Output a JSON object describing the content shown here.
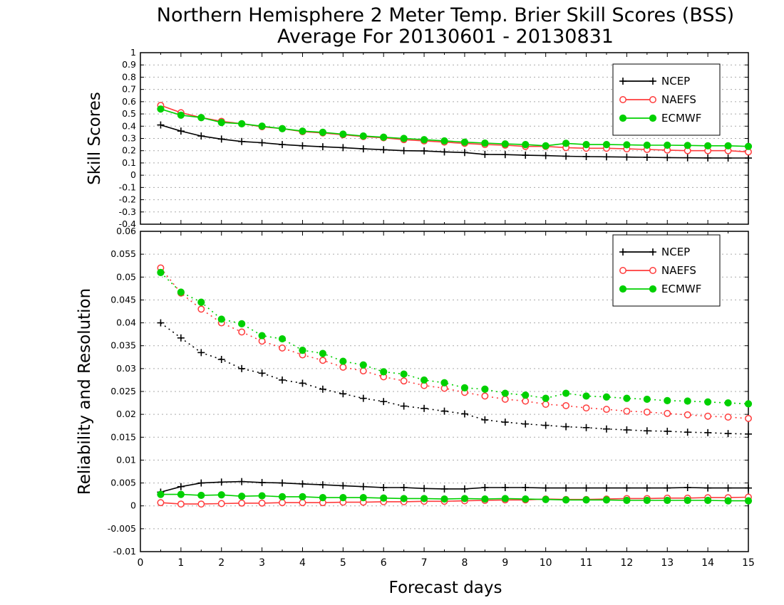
{
  "title_line1": "Northern Hemisphere 2 Meter Temp. Brier Skill Scores (BSS)",
  "title_line2": "Average For 20130601 - 20130831",
  "xlabel": "Forecast days",
  "chart_data": [
    {
      "type": "line",
      "ylabel": "Skill Scores",
      "xlim": [
        0,
        15
      ],
      "ylim": [
        -0.4,
        1
      ],
      "yticks": [
        "-0.4",
        "-0.3",
        "-0.2",
        "-0.1",
        "0",
        "0.1",
        "0.2",
        "0.3",
        "0.4",
        "0.5",
        "0.6",
        "0.7",
        "0.8",
        "0.9",
        "1"
      ],
      "xticks": [
        "0",
        "1",
        "2",
        "3",
        "4",
        "5",
        "6",
        "7",
        "8",
        "9",
        "10",
        "11",
        "12",
        "13",
        "14",
        "15"
      ],
      "grid": true,
      "legend": "top-right",
      "x": [
        0.5,
        1,
        1.5,
        2,
        2.5,
        3,
        3.5,
        4,
        4.5,
        5,
        5.5,
        6,
        6.5,
        7,
        7.5,
        8,
        8.5,
        9,
        9.5,
        10,
        10.5,
        11,
        11.5,
        12,
        12.5,
        13,
        13.5,
        14,
        14.5,
        15
      ],
      "series": [
        {
          "name": "NCEP",
          "color": "#000000",
          "marker": "plus",
          "line": "solid",
          "values": [
            0.41,
            0.36,
            0.32,
            0.295,
            0.275,
            0.265,
            0.25,
            0.24,
            0.232,
            0.225,
            0.215,
            0.208,
            0.2,
            0.198,
            0.19,
            0.185,
            0.17,
            0.168,
            0.163,
            0.16,
            0.155,
            0.152,
            0.15,
            0.148,
            0.146,
            0.144,
            0.142,
            0.141,
            0.14,
            0.14
          ]
        },
        {
          "name": "NAEFS",
          "color": "#ff3c3c",
          "marker": "open-circle",
          "line": "solid",
          "values": [
            0.57,
            0.51,
            0.47,
            0.44,
            0.42,
            0.395,
            0.38,
            0.355,
            0.345,
            0.33,
            0.315,
            0.305,
            0.29,
            0.28,
            0.27,
            0.26,
            0.25,
            0.245,
            0.235,
            0.235,
            0.225,
            0.22,
            0.22,
            0.215,
            0.21,
            0.205,
            0.2,
            0.2,
            0.2,
            0.19
          ]
        },
        {
          "name": "ECMWF",
          "color": "#00d000",
          "marker": "filled-circle",
          "line": "solid",
          "values": [
            0.54,
            0.49,
            0.47,
            0.43,
            0.42,
            0.4,
            0.38,
            0.36,
            0.35,
            0.335,
            0.32,
            0.31,
            0.3,
            0.29,
            0.28,
            0.27,
            0.262,
            0.255,
            0.25,
            0.24,
            0.26,
            0.25,
            0.25,
            0.248,
            0.245,
            0.245,
            0.243,
            0.24,
            0.24,
            0.235
          ]
        }
      ]
    },
    {
      "type": "line",
      "ylabel": "Reliability and Resolution",
      "xlim": [
        0,
        15
      ],
      "ylim": [
        -0.01,
        0.06
      ],
      "yticks": [
        "-0.01",
        "-0.005",
        "0",
        "0.005",
        "0.01",
        "0.015",
        "0.02",
        "0.025",
        "0.03",
        "0.035",
        "0.04",
        "0.045",
        "0.05",
        "0.055",
        "0.06"
      ],
      "xticks": [
        "0",
        "1",
        "2",
        "3",
        "4",
        "5",
        "6",
        "7",
        "8",
        "9",
        "10",
        "11",
        "12",
        "13",
        "14",
        "15"
      ],
      "grid": true,
      "legend": "top-right",
      "x": [
        0.5,
        1,
        1.5,
        2,
        2.5,
        3,
        3.5,
        4,
        4.5,
        5,
        5.5,
        6,
        6.5,
        7,
        7.5,
        8,
        8.5,
        9,
        9.5,
        10,
        10.5,
        11,
        11.5,
        12,
        12.5,
        13,
        13.5,
        14,
        14.5,
        15
      ],
      "legend_entries": [
        {
          "name": "NCEP",
          "color": "#000000",
          "marker": "plus"
        },
        {
          "name": "NAEFS",
          "color": "#ff3c3c",
          "marker": "open-circle"
        },
        {
          "name": "ECMWF",
          "color": "#00d000",
          "marker": "filled-circle"
        }
      ],
      "series": [
        {
          "group": "NCEP",
          "color": "#000000",
          "marker": "plus",
          "line": "dotted",
          "values": [
            0.04,
            0.0367,
            0.0335,
            0.032,
            0.03,
            0.029,
            0.0275,
            0.0268,
            0.0255,
            0.0245,
            0.0235,
            0.0228,
            0.0218,
            0.0213,
            0.0207,
            0.0201,
            0.0188,
            0.0183,
            0.0179,
            0.0176,
            0.0173,
            0.0171,
            0.0168,
            0.0166,
            0.0164,
            0.0163,
            0.0161,
            0.016,
            0.0158,
            0.0157
          ]
        },
        {
          "group": "NAEFS",
          "color": "#ff3c3c",
          "marker": "open-circle",
          "line": "dotted",
          "values": [
            0.052,
            0.0465,
            0.043,
            0.04,
            0.038,
            0.036,
            0.0345,
            0.033,
            0.0318,
            0.0303,
            0.0295,
            0.0282,
            0.0273,
            0.0263,
            0.0257,
            0.0248,
            0.024,
            0.0233,
            0.0229,
            0.0222,
            0.0219,
            0.0214,
            0.0211,
            0.0207,
            0.0205,
            0.0202,
            0.0199,
            0.0196,
            0.0194,
            0.0191
          ]
        },
        {
          "group": "ECMWF",
          "color": "#00d000",
          "marker": "filled-circle",
          "line": "dotted",
          "values": [
            0.051,
            0.0467,
            0.0445,
            0.0408,
            0.0398,
            0.0372,
            0.0365,
            0.034,
            0.0333,
            0.0316,
            0.0308,
            0.0293,
            0.0288,
            0.0275,
            0.0269,
            0.0258,
            0.0255,
            0.0246,
            0.0242,
            0.0235,
            0.0246,
            0.024,
            0.0238,
            0.0235,
            0.0233,
            0.023,
            0.0229,
            0.0227,
            0.0225,
            0.0223
          ]
        },
        {
          "group": "NCEP",
          "color": "#000000",
          "marker": "plus",
          "line": "solid",
          "values": [
            0.003,
            0.0042,
            0.005,
            0.0052,
            0.0053,
            0.0051,
            0.005,
            0.0048,
            0.0046,
            0.0044,
            0.0042,
            0.004,
            0.004,
            0.0038,
            0.0037,
            0.0037,
            0.004,
            0.004,
            0.004,
            0.0039,
            0.0039,
            0.0039,
            0.0039,
            0.0039,
            0.0039,
            0.0039,
            0.004,
            0.0039,
            0.0039,
            0.0039
          ]
        },
        {
          "group": "NAEFS",
          "color": "#ff3c3c",
          "marker": "open-circle",
          "line": "solid",
          "values": [
            0.0007,
            0.0004,
            0.0004,
            0.0005,
            0.0006,
            0.0006,
            0.0007,
            0.0007,
            0.0007,
            0.0008,
            0.0008,
            0.0009,
            0.0009,
            0.001,
            0.001,
            0.0011,
            0.0012,
            0.0013,
            0.0013,
            0.0015,
            0.0014,
            0.0014,
            0.0015,
            0.0016,
            0.0016,
            0.0017,
            0.0017,
            0.0018,
            0.0018,
            0.0019
          ]
        },
        {
          "group": "ECMWF",
          "color": "#00d000",
          "marker": "filled-circle",
          "line": "solid",
          "values": [
            0.0025,
            0.0025,
            0.0023,
            0.0024,
            0.0021,
            0.0022,
            0.002,
            0.002,
            0.0018,
            0.0018,
            0.0018,
            0.0017,
            0.0016,
            0.0016,
            0.0015,
            0.0016,
            0.0015,
            0.0016,
            0.0015,
            0.0014,
            0.0013,
            0.0013,
            0.0013,
            0.0012,
            0.0012,
            0.0012,
            0.0012,
            0.0012,
            0.0011,
            0.0011
          ]
        }
      ]
    }
  ]
}
